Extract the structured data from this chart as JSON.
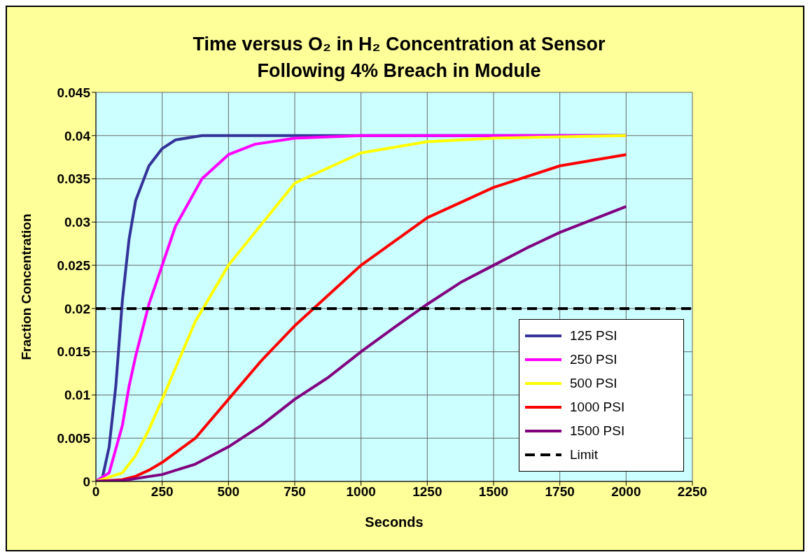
{
  "chart_data": {
    "type": "line",
    "title": "Time versus O₂ in H₂ Concentration at Sensor\nFollowing 4% Breach in Module",
    "xlabel": "Seconds",
    "ylabel": "Fraction Concentration",
    "xlim": [
      0,
      2250
    ],
    "xticks": [
      0,
      250,
      500,
      750,
      1000,
      1250,
      1500,
      1750,
      2000,
      2250
    ],
    "ylim": [
      0,
      0.045
    ],
    "yticks": [
      0,
      0.005,
      0.01,
      0.015,
      0.02,
      0.025,
      0.03,
      0.035,
      0.04,
      0.045
    ],
    "grid": true,
    "legend": "bottom right",
    "marker": "none",
    "line_style": "solid",
    "series": [
      {
        "name": "125 PSI",
        "color": "#333399",
        "x": [
          0,
          25,
          50,
          75,
          100,
          125,
          150,
          200,
          250,
          300,
          400,
          500,
          2000
        ],
        "values": [
          0,
          0.0005,
          0.004,
          0.011,
          0.021,
          0.028,
          0.0325,
          0.0365,
          0.0385,
          0.0395,
          0.04,
          0.04,
          0.04
        ]
      },
      {
        "name": "250 PSI",
        "color": "#ff00ff",
        "x": [
          0,
          50,
          100,
          125,
          150,
          200,
          250,
          300,
          400,
          500,
          600,
          750,
          1000,
          2000
        ],
        "values": [
          0,
          0.001,
          0.0065,
          0.011,
          0.0145,
          0.0205,
          0.025,
          0.0295,
          0.035,
          0.0378,
          0.039,
          0.0397,
          0.04,
          0.04
        ]
      },
      {
        "name": "500 PSI",
        "color": "#ffff00",
        "x": [
          0,
          100,
          150,
          200,
          250,
          375,
          500,
          750,
          1000,
          1250,
          1500,
          2000
        ],
        "values": [
          0,
          0.001,
          0.003,
          0.006,
          0.0095,
          0.0185,
          0.025,
          0.0345,
          0.038,
          0.0393,
          0.0397,
          0.04
        ]
      },
      {
        "name": "1000 PSI",
        "color": "#ff0000",
        "x": [
          0,
          100,
          150,
          200,
          250,
          375,
          500,
          625,
          750,
          1000,
          1250,
          1500,
          1750,
          2000
        ],
        "values": [
          0,
          0.0002,
          0.0006,
          0.0013,
          0.0022,
          0.005,
          0.0095,
          0.014,
          0.018,
          0.025,
          0.0305,
          0.034,
          0.0365,
          0.0378
        ]
      },
      {
        "name": "1500 PSI",
        "color": "#800080",
        "x": [
          0,
          100,
          250,
          375,
          500,
          625,
          750,
          875,
          1000,
          1125,
          1250,
          1375,
          1500,
          1625,
          1750,
          1875,
          2000
        ],
        "values": [
          0,
          0.0001,
          0.0008,
          0.002,
          0.004,
          0.0065,
          0.0095,
          0.012,
          0.015,
          0.0178,
          0.0205,
          0.023,
          0.025,
          0.027,
          0.0288,
          0.0303,
          0.0318
        ]
      },
      {
        "name": "Limit",
        "color": "#000000",
        "line_style": "dashed",
        "x": [
          0,
          2250
        ],
        "values": [
          0.02,
          0.02
        ]
      }
    ]
  }
}
